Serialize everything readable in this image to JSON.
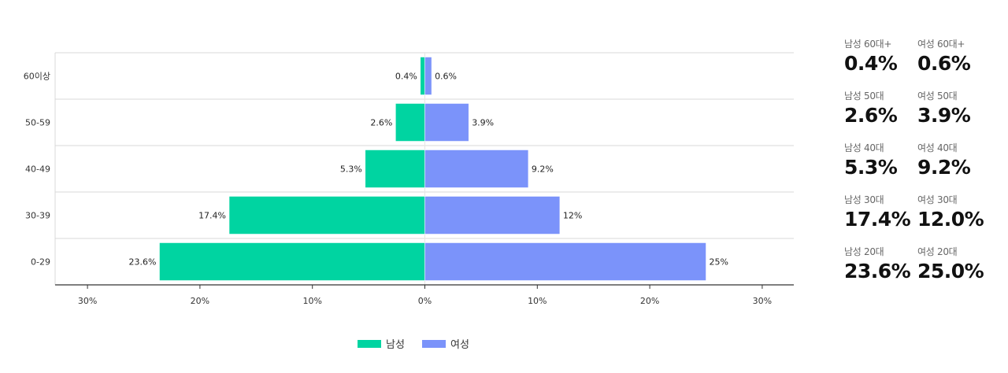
{
  "chart_data": {
    "type": "bar",
    "orientation": "horizontal-pyramid",
    "categories": [
      "60이상",
      "50-59",
      "40-49",
      "30-39",
      "0-29"
    ],
    "series": [
      {
        "name": "남성",
        "values": [
          0.4,
          2.6,
          5.3,
          17.4,
          23.6
        ],
        "labels": [
          "0.4%",
          "2.6%",
          "5.3%",
          "17.4%",
          "23.6%"
        ],
        "color": "#00d4a1",
        "side": "left"
      },
      {
        "name": "여성",
        "values": [
          0.6,
          3.9,
          9.2,
          12,
          25
        ],
        "labels": [
          "0.6%",
          "3.9%",
          "9.2%",
          "12%",
          "25%"
        ],
        "color": "#7b93fa",
        "side": "right"
      }
    ],
    "x_ticks": [
      "30%",
      "20%",
      "10%",
      "0%",
      "10%",
      "20%",
      "30%"
    ],
    "x_tick_values": [
      -30,
      -20,
      -10,
      0,
      10,
      20,
      30
    ],
    "xlim": [
      -33,
      33
    ],
    "grid": true,
    "legend_position": "bottom-center"
  },
  "stats": [
    {
      "label": "남성 60대+",
      "value": "0.4%"
    },
    {
      "label": "여성 60대+",
      "value": "0.6%"
    },
    {
      "label": "남성 50대",
      "value": "2.6%"
    },
    {
      "label": "여성 50대",
      "value": "3.9%"
    },
    {
      "label": "남성 40대",
      "value": "5.3%"
    },
    {
      "label": "여성 40대",
      "value": "9.2%"
    },
    {
      "label": "남성 30대",
      "value": "17.4%"
    },
    {
      "label": "여성 30대",
      "value": "12.0%"
    },
    {
      "label": "남성 20대",
      "value": "23.6%"
    },
    {
      "label": "여성 20대",
      "value": "25.0%"
    }
  ]
}
